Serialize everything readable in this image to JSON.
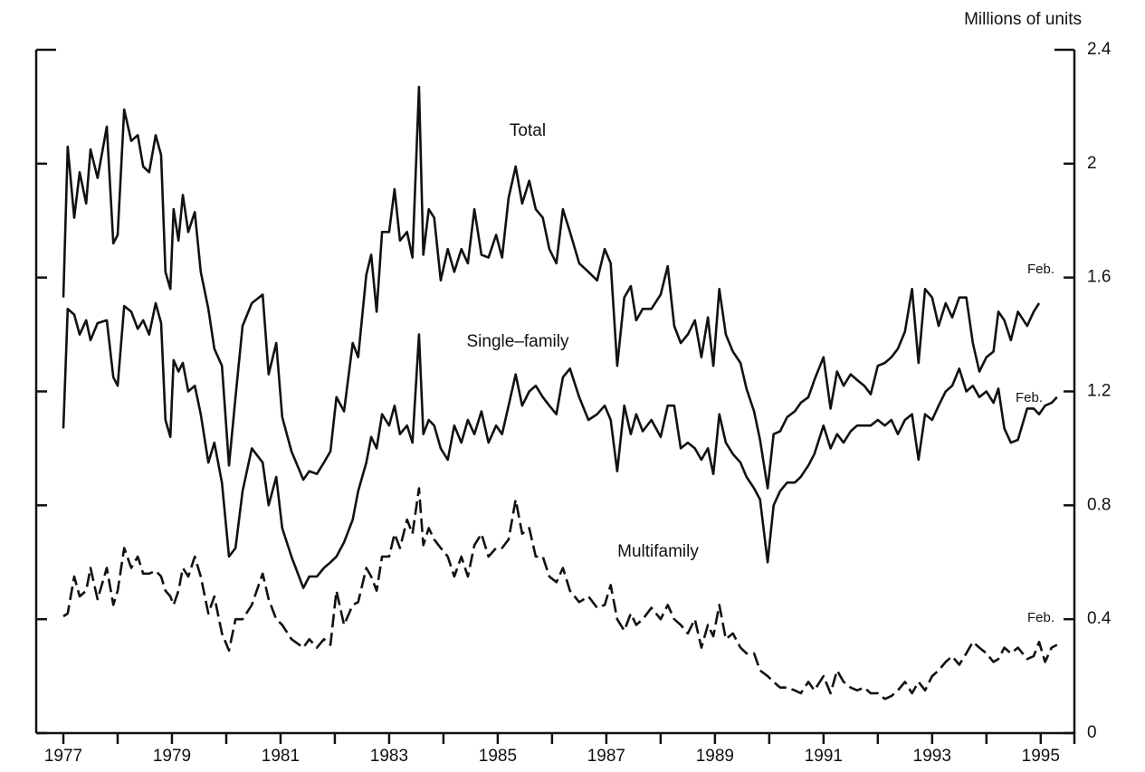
{
  "chart_data": {
    "type": "line",
    "y_axis_label": "Millions of units",
    "annotations": [
      "Total",
      "Single–family",
      "Multifamily",
      "Feb.",
      "Feb.",
      "Feb."
    ],
    "x": [
      1977.0,
      1977.08,
      1977.2,
      1977.3,
      1977.42,
      1977.5,
      1977.63,
      1977.8,
      1977.92,
      1978.0,
      1978.12,
      1978.25,
      1978.37,
      1978.47,
      1978.58,
      1978.7,
      1978.8,
      1978.88,
      1978.97,
      1979.03,
      1979.12,
      1979.2,
      1979.3,
      1979.42,
      1979.53,
      1979.67,
      1979.78,
      1979.92,
      1980.05,
      1980.17,
      1980.3,
      1980.47,
      1980.67,
      1980.78,
      1980.92,
      1981.03,
      1981.2,
      1981.42,
      1981.53,
      1981.67,
      1981.8,
      1981.92,
      1982.03,
      1982.17,
      1982.33,
      1982.43,
      1982.58,
      1982.67,
      1982.77,
      1982.87,
      1983.0,
      1983.1,
      1983.2,
      1983.33,
      1983.43,
      1983.55,
      1983.63,
      1983.73,
      1983.83,
      1983.95,
      1984.08,
      1984.2,
      1984.33,
      1984.45,
      1984.57,
      1984.7,
      1984.83,
      1984.97,
      1985.08,
      1985.2,
      1985.33,
      1985.45,
      1985.58,
      1985.7,
      1985.83,
      1985.95,
      1986.08,
      1986.2,
      1986.33,
      1986.5,
      1986.67,
      1986.83,
      1986.97,
      1987.08,
      1987.2,
      1987.33,
      1987.45,
      1987.55,
      1987.67,
      1987.83,
      1988.0,
      1988.13,
      1988.25,
      1988.37,
      1988.5,
      1988.63,
      1988.75,
      1988.87,
      1988.97,
      1989.08,
      1989.2,
      1989.33,
      1989.47,
      1989.58,
      1989.72,
      1989.83,
      1989.97,
      1990.08,
      1990.2,
      1990.33,
      1990.47,
      1990.58,
      1990.72,
      1990.83,
      1991.0,
      1991.13,
      1991.25,
      1991.37,
      1991.5,
      1991.62,
      1991.75,
      1991.87,
      1992.0,
      1992.13,
      1992.25,
      1992.37,
      1992.5,
      1992.63,
      1992.75,
      1992.87,
      1993.0,
      1993.12,
      1993.25,
      1993.37,
      1993.5,
      1993.63,
      1993.75,
      1993.87,
      1994.0,
      1994.13,
      1994.22,
      1994.33,
      1994.45,
      1994.58,
      1994.75,
      1994.87,
      1994.97,
      1995.08,
      1995.2,
      1995.3
    ],
    "series": [
      {
        "name": "Total",
        "color": "#111111",
        "style": "solid",
        "values": [
          1.53,
          2.06,
          1.81,
          1.97,
          1.86,
          2.05,
          1.95,
          2.13,
          1.72,
          1.75,
          2.19,
          2.08,
          2.1,
          1.99,
          1.97,
          2.1,
          2.03,
          1.62,
          1.56,
          1.84,
          1.73,
          1.89,
          1.76,
          1.83,
          1.62,
          1.49,
          1.35,
          1.29,
          0.94,
          1.18,
          1.43,
          1.51,
          1.54,
          1.26,
          1.37,
          1.11,
          0.99,
          0.89,
          0.92,
          0.91,
          0.95,
          0.99,
          1.18,
          1.13,
          1.37,
          1.32,
          1.61,
          1.68,
          1.48,
          1.76,
          1.76,
          1.91,
          1.73,
          1.76,
          1.67,
          2.27,
          1.68,
          1.84,
          1.81,
          1.59,
          1.7,
          1.62,
          1.7,
          1.65,
          1.84,
          1.68,
          1.67,
          1.75,
          1.67,
          1.88,
          1.99,
          1.86,
          1.94,
          1.84,
          1.81,
          1.7,
          1.65,
          1.84,
          1.76,
          1.65,
          1.62,
          1.59,
          1.7,
          1.65,
          1.29,
          1.53,
          1.57,
          1.45,
          1.49,
          1.49,
          1.54,
          1.64,
          1.43,
          1.37,
          1.4,
          1.45,
          1.32,
          1.46,
          1.29,
          1.56,
          1.4,
          1.34,
          1.3,
          1.21,
          1.13,
          1.03,
          0.86,
          1.05,
          1.06,
          1.11,
          1.13,
          1.16,
          1.18,
          1.24,
          1.32,
          1.14,
          1.27,
          1.22,
          1.26,
          1.24,
          1.22,
          1.19,
          1.29,
          1.3,
          1.32,
          1.35,
          1.41,
          1.56,
          1.3,
          1.56,
          1.53,
          1.43,
          1.51,
          1.46,
          1.53,
          1.53,
          1.37,
          1.27,
          1.32,
          1.34,
          1.48,
          1.45,
          1.38,
          1.48,
          1.43,
          1.48,
          1.51,
          null,
          null,
          null
        ]
      },
      {
        "name": "Single–family",
        "color": "#111111",
        "style": "solid",
        "values": [
          1.07,
          1.49,
          1.47,
          1.4,
          1.45,
          1.38,
          1.44,
          1.45,
          1.25,
          1.22,
          1.5,
          1.48,
          1.42,
          1.45,
          1.4,
          1.51,
          1.44,
          1.1,
          1.04,
          1.31,
          1.27,
          1.3,
          1.2,
          1.22,
          1.12,
          0.95,
          1.02,
          0.88,
          0.62,
          0.65,
          0.85,
          1.0,
          0.95,
          0.8,
          0.9,
          0.72,
          0.62,
          0.51,
          0.55,
          0.55,
          0.58,
          0.6,
          0.62,
          0.67,
          0.75,
          0.85,
          0.95,
          1.04,
          1.0,
          1.12,
          1.08,
          1.15,
          1.05,
          1.08,
          1.02,
          1.4,
          1.05,
          1.1,
          1.08,
          1.0,
          0.96,
          1.08,
          1.02,
          1.1,
          1.05,
          1.13,
          1.02,
          1.08,
          1.05,
          1.15,
          1.26,
          1.15,
          1.2,
          1.22,
          1.18,
          1.15,
          1.12,
          1.25,
          1.28,
          1.18,
          1.1,
          1.12,
          1.15,
          1.1,
          0.92,
          1.15,
          1.05,
          1.12,
          1.06,
          1.1,
          1.04,
          1.15,
          1.15,
          1.0,
          1.02,
          1.0,
          0.96,
          1.0,
          0.91,
          1.12,
          1.02,
          0.98,
          0.95,
          0.9,
          0.86,
          0.82,
          0.6,
          0.8,
          0.85,
          0.88,
          0.88,
          0.9,
          0.94,
          0.98,
          1.08,
          1.0,
          1.05,
          1.02,
          1.06,
          1.08,
          1.08,
          1.08,
          1.1,
          1.08,
          1.1,
          1.05,
          1.1,
          1.12,
          0.96,
          1.12,
          1.1,
          1.15,
          1.2,
          1.22,
          1.28,
          1.2,
          1.22,
          1.18,
          1.2,
          1.16,
          1.21,
          1.07,
          1.02,
          1.03,
          1.14,
          1.14,
          1.12,
          1.15,
          1.16,
          1.18
        ]
      },
      {
        "name": "Multifamily",
        "color": "#111111",
        "style": "dashed",
        "values": [
          0.41,
          0.42,
          0.55,
          0.48,
          0.5,
          0.58,
          0.47,
          0.58,
          0.45,
          0.5,
          0.65,
          0.58,
          0.62,
          0.56,
          0.56,
          0.57,
          0.55,
          0.5,
          0.48,
          0.45,
          0.5,
          0.58,
          0.55,
          0.62,
          0.55,
          0.42,
          0.48,
          0.35,
          0.29,
          0.4,
          0.4,
          0.45,
          0.56,
          0.47,
          0.4,
          0.38,
          0.33,
          0.3,
          0.33,
          0.3,
          0.33,
          0.31,
          0.5,
          0.38,
          0.45,
          0.46,
          0.58,
          0.55,
          0.5,
          0.62,
          0.62,
          0.7,
          0.65,
          0.75,
          0.7,
          0.86,
          0.66,
          0.72,
          0.68,
          0.65,
          0.62,
          0.55,
          0.62,
          0.55,
          0.66,
          0.7,
          0.62,
          0.65,
          0.65,
          0.68,
          0.82,
          0.7,
          0.72,
          0.62,
          0.62,
          0.55,
          0.53,
          0.58,
          0.5,
          0.46,
          0.48,
          0.44,
          0.45,
          0.52,
          0.4,
          0.36,
          0.42,
          0.38,
          0.4,
          0.44,
          0.4,
          0.45,
          0.4,
          0.38,
          0.35,
          0.4,
          0.3,
          0.38,
          0.34,
          0.45,
          0.33,
          0.35,
          0.3,
          0.28,
          0.28,
          0.22,
          0.2,
          0.18,
          0.16,
          0.16,
          0.15,
          0.14,
          0.18,
          0.15,
          0.2,
          0.14,
          0.22,
          0.18,
          0.16,
          0.15,
          0.16,
          0.14,
          0.14,
          0.12,
          0.13,
          0.15,
          0.18,
          0.14,
          0.18,
          0.15,
          0.2,
          0.22,
          0.25,
          0.27,
          0.24,
          0.28,
          0.32,
          0.3,
          0.28,
          0.25,
          0.26,
          0.3,
          0.28,
          0.3,
          0.26,
          0.27,
          0.32,
          0.25,
          0.3,
          0.31
        ]
      }
    ],
    "xlim": [
      1976.5,
      1995.62
    ],
    "xticks": [
      1977,
      1979,
      1981,
      1983,
      1985,
      1987,
      1989,
      1991,
      1993,
      1995
    ],
    "xminorticks": [
      1978,
      1980,
      1982,
      1984,
      1986,
      1988,
      1990,
      1992,
      1994
    ],
    "ylim": [
      0,
      2.4
    ],
    "yticks": [
      0,
      0.4,
      0.8,
      1.2,
      1.6,
      2,
      2.4
    ],
    "grid": false
  }
}
